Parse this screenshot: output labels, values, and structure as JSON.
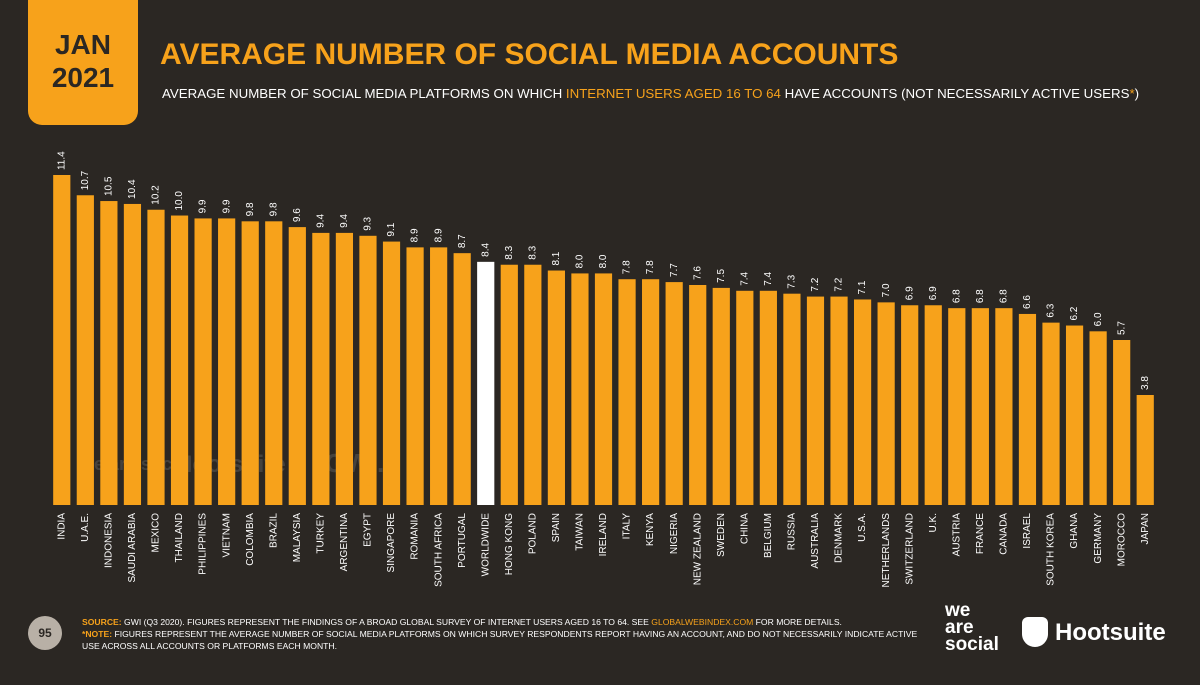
{
  "header": {
    "month": "JAN",
    "year": "2021",
    "title": "AVERAGE NUMBER OF SOCIAL MEDIA ACCOUNTS",
    "subtitle": [
      "AVERAGE NUMBER OF SOCIAL MEDIA PLATFORMS ON WHICH ",
      "INTERNET USERS AGED 16 TO 64",
      " HAVE ACCOUNTS (NOT NECESSARILY ACTIVE USERS",
      "*",
      ")"
    ]
  },
  "watermark": [
    "we are social",
    "Hootsuite",
    "GWI."
  ],
  "chart_data": {
    "type": "bar",
    "color": "#f7a21b",
    "highlight_color": "#ffffff",
    "highlight_index": 18,
    "categories": [
      "INDIA",
      "U.A.E.",
      "INDONESIA",
      "SAUDI ARABIA",
      "MEXICO",
      "THAILAND",
      "PHILIPPINES",
      "VIETNAM",
      "COLOMBIA",
      "BRAZIL",
      "MALAYSIA",
      "TURKEY",
      "ARGENTINA",
      "EGYPT",
      "SINGAPORE",
      "ROMANIA",
      "SOUTH AFRICA",
      "PORTUGAL",
      "WORLDWIDE",
      "HONG KONG",
      "POLAND",
      "SPAIN",
      "TAIWAN",
      "IRELAND",
      "ITALY",
      "KENYA",
      "NIGERIA",
      "NEW ZEALAND",
      "SWEDEN",
      "CHINA",
      "BELGIUM",
      "RUSSIA",
      "AUSTRALIA",
      "DENMARK",
      "U.S.A.",
      "NETHERLANDS",
      "SWITZERLAND",
      "U.K.",
      "AUSTRIA",
      "FRANCE",
      "CANADA",
      "ISRAEL",
      "SOUTH KOREA",
      "GHANA",
      "GERMANY",
      "MOROCCO",
      "JAPAN"
    ],
    "values": [
      11.4,
      10.7,
      10.5,
      10.4,
      10.2,
      10.0,
      9.9,
      9.9,
      9.8,
      9.8,
      9.6,
      9.4,
      9.4,
      9.3,
      9.1,
      8.9,
      8.9,
      8.7,
      8.4,
      8.3,
      8.3,
      8.1,
      8.0,
      8.0,
      7.8,
      7.8,
      7.7,
      7.6,
      7.5,
      7.4,
      7.4,
      7.3,
      7.2,
      7.2,
      7.1,
      7.0,
      6.9,
      6.9,
      6.8,
      6.8,
      6.8,
      6.6,
      6.3,
      6.2,
      6.0,
      5.7,
      3.8
    ],
    "value_labels": [
      "11.4",
      "10.7",
      "10.5",
      "10.4",
      "10.2",
      "10.0",
      "9.9",
      "9.9",
      "9.8",
      "9.8",
      "9.6",
      "9.4",
      "9.4",
      "9.3",
      "9.1",
      "8.9",
      "8.9",
      "8.7",
      "8.4",
      "8.3",
      "8.3",
      "8.1",
      "8.0",
      "8.0",
      "7.8",
      "7.8",
      "7.7",
      "7.6",
      "7.5",
      "7.4",
      "7.4",
      "7.3",
      "7.2",
      "7.2",
      "7.1",
      "7.0",
      "6.9",
      "6.9",
      "6.8",
      "6.8",
      "6.8",
      "6.6",
      "6.3",
      "6.2",
      "6.0",
      "5.7",
      "3.8"
    ]
  },
  "footer": {
    "page": "95",
    "source_label": "SOURCE:",
    "source_text": "GWI (Q3 2020). FIGURES REPRESENT THE FINDINGS OF A BROAD GLOBAL SURVEY OF INTERNET USERS AGED 16 TO 64. SEE ",
    "source_link": "GLOBALWEBINDEX.COM",
    "source_end": " FOR MORE DETAILS.",
    "note_label": "*NOTE:",
    "note_text": "FIGURES REPRESENT THE AVERAGE NUMBER OF SOCIAL MEDIA PLATFORMS ON WHICH SURVEY RESPONDENTS REPORT HAVING AN ACCOUNT, AND DO NOT NECESSARILY INDICATE ACTIVE USE ACROSS ALL ACCOUNTS OR PLATFORMS EACH MONTH.",
    "logo_we": [
      "we",
      "are",
      "social"
    ],
    "logo_hootsuite": "Hootsuite"
  }
}
